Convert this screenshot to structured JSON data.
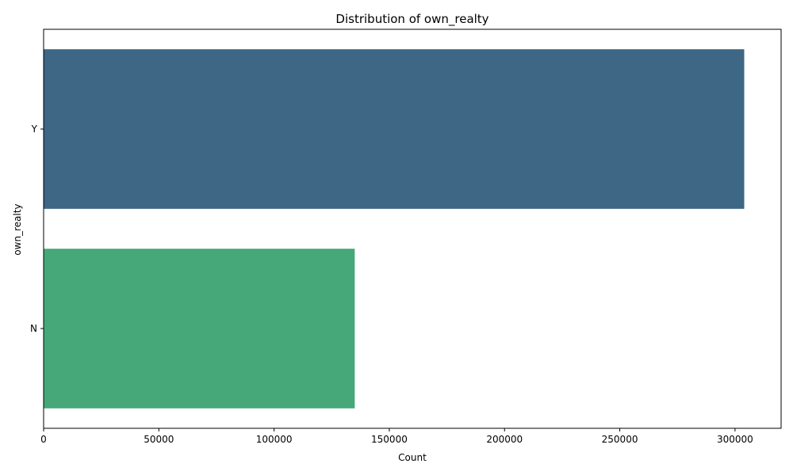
{
  "chart_data": {
    "type": "bar",
    "orientation": "horizontal",
    "title": "Distribution of own_realty",
    "xlabel": "Count",
    "ylabel": "own_realty",
    "categories": [
      "Y",
      "N"
    ],
    "values": [
      304000,
      135000
    ],
    "colors": [
      "#3e6685",
      "#46a879"
    ],
    "xlim": [
      0,
      320000
    ],
    "xticks": [
      0,
      50000,
      100000,
      150000,
      200000,
      250000,
      300000
    ],
    "grid": false,
    "legend": "none"
  }
}
